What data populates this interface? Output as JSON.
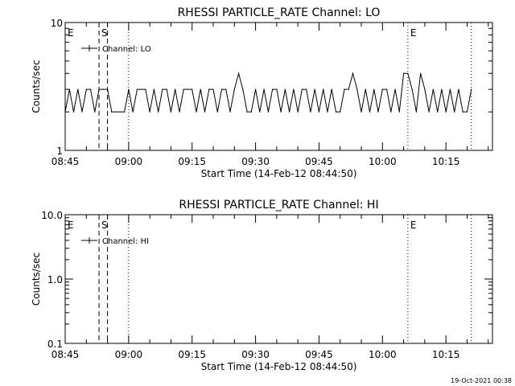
{
  "footer": {
    "timestamp": "19-Oct-2021 00:38"
  },
  "chart_data": [
    {
      "type": "line",
      "title": "RHESSI PARTICLE_RATE Channel: LO",
      "xlabel": "Start Time (14-Feb-12 08:44:50)",
      "ylabel": "Counts/sec",
      "y_scale": "log",
      "ylim": [
        1,
        10
      ],
      "y_ticks": [
        {
          "value": 10,
          "label": "10"
        },
        {
          "value": 1,
          "label": "1"
        }
      ],
      "xlim_minutes": [
        0,
        101
      ],
      "x_ticks": [
        {
          "minute": 0,
          "label": "08:45"
        },
        {
          "minute": 15,
          "label": "09:00"
        },
        {
          "minute": 30,
          "label": "09:15"
        },
        {
          "minute": 45,
          "label": "09:30"
        },
        {
          "minute": 60,
          "label": "09:45"
        },
        {
          "minute": 75,
          "label": "10:00"
        },
        {
          "minute": 90,
          "label": "10:15"
        }
      ],
      "legend": {
        "label": "Channel: LO",
        "position": "top-left"
      },
      "markers": [
        {
          "label": "E",
          "minute": 0,
          "style": "none"
        },
        {
          "label": "S",
          "minute": 8,
          "style": "dashed"
        },
        {
          "minute": 10,
          "style": "dashed"
        },
        {
          "minute": 15,
          "style": "dotted"
        },
        {
          "label": "E",
          "minute": 81,
          "style": "dotted"
        },
        {
          "minute": 96,
          "style": "dotted"
        }
      ],
      "series": [
        {
          "minutes": [
            0,
            1,
            2,
            3,
            4,
            5,
            6,
            7,
            8,
            9,
            10,
            11,
            12,
            13,
            14,
            15,
            16,
            17,
            18,
            19,
            20,
            21,
            22,
            23,
            24,
            25,
            26,
            27,
            28,
            29,
            30,
            31,
            32,
            33,
            34,
            35,
            36,
            37,
            38,
            39,
            40,
            41,
            42,
            43,
            44,
            45,
            46,
            47,
            48,
            49,
            50,
            51,
            52,
            53,
            54,
            55,
            56,
            57,
            58,
            59,
            60,
            61,
            62,
            63,
            64,
            65,
            66,
            67,
            68,
            69,
            70,
            71,
            72,
            73,
            74,
            75,
            76,
            77,
            78,
            79,
            80,
            81,
            82,
            83,
            84,
            85,
            86,
            87,
            88,
            89,
            90,
            91,
            92,
            93,
            94,
            95,
            96
          ],
          "values": [
            2,
            3,
            2,
            3,
            2,
            3,
            3,
            2,
            3,
            3,
            3,
            2,
            2,
            2,
            2,
            3,
            2,
            3,
            3,
            3,
            2,
            3,
            2,
            3,
            3,
            2,
            3,
            2,
            3,
            3,
            3,
            2,
            3,
            2,
            3,
            3,
            2,
            3,
            3,
            2,
            3,
            4,
            3,
            2,
            2,
            3,
            2,
            3,
            2,
            3,
            3,
            2,
            3,
            2,
            3,
            2,
            3,
            3,
            2,
            3,
            2,
            3,
            2,
            3,
            2,
            2,
            3,
            3,
            4,
            3,
            2,
            3,
            2,
            3,
            2,
            3,
            3,
            2,
            3,
            2,
            4,
            4,
            3,
            2,
            4,
            3,
            2,
            3,
            2,
            3,
            2,
            3,
            2,
            3,
            2,
            2,
            3
          ]
        }
      ]
    },
    {
      "type": "line",
      "title": "RHESSI PARTICLE_RATE Channel: HI",
      "xlabel": "Start Time (14-Feb-12 08:44:50)",
      "ylabel": "Counts/sec",
      "y_scale": "log",
      "ylim": [
        0.1,
        10
      ],
      "y_ticks": [
        {
          "value": 10,
          "label": "10.0"
        },
        {
          "value": 1,
          "label": "1.0"
        },
        {
          "value": 0.1,
          "label": "0.1"
        }
      ],
      "xlim_minutes": [
        0,
        101
      ],
      "x_ticks": [
        {
          "minute": 0,
          "label": "08:45"
        },
        {
          "minute": 15,
          "label": "09:00"
        },
        {
          "minute": 30,
          "label": "09:15"
        },
        {
          "minute": 45,
          "label": "09:30"
        },
        {
          "minute": 60,
          "label": "09:45"
        },
        {
          "minute": 75,
          "label": "10:00"
        },
        {
          "minute": 90,
          "label": "10:15"
        }
      ],
      "legend": {
        "label": "Channel: HI",
        "position": "top-left"
      },
      "markers": [
        {
          "label": "E",
          "minute": 0,
          "style": "none"
        },
        {
          "label": "S",
          "minute": 8,
          "style": "dashed"
        },
        {
          "minute": 10,
          "style": "dashed"
        },
        {
          "minute": 15,
          "style": "dotted"
        },
        {
          "label": "E",
          "minute": 81,
          "style": "dotted"
        },
        {
          "minute": 96,
          "style": "dotted"
        }
      ],
      "series": [
        {
          "minutes": [],
          "values": []
        }
      ]
    }
  ]
}
